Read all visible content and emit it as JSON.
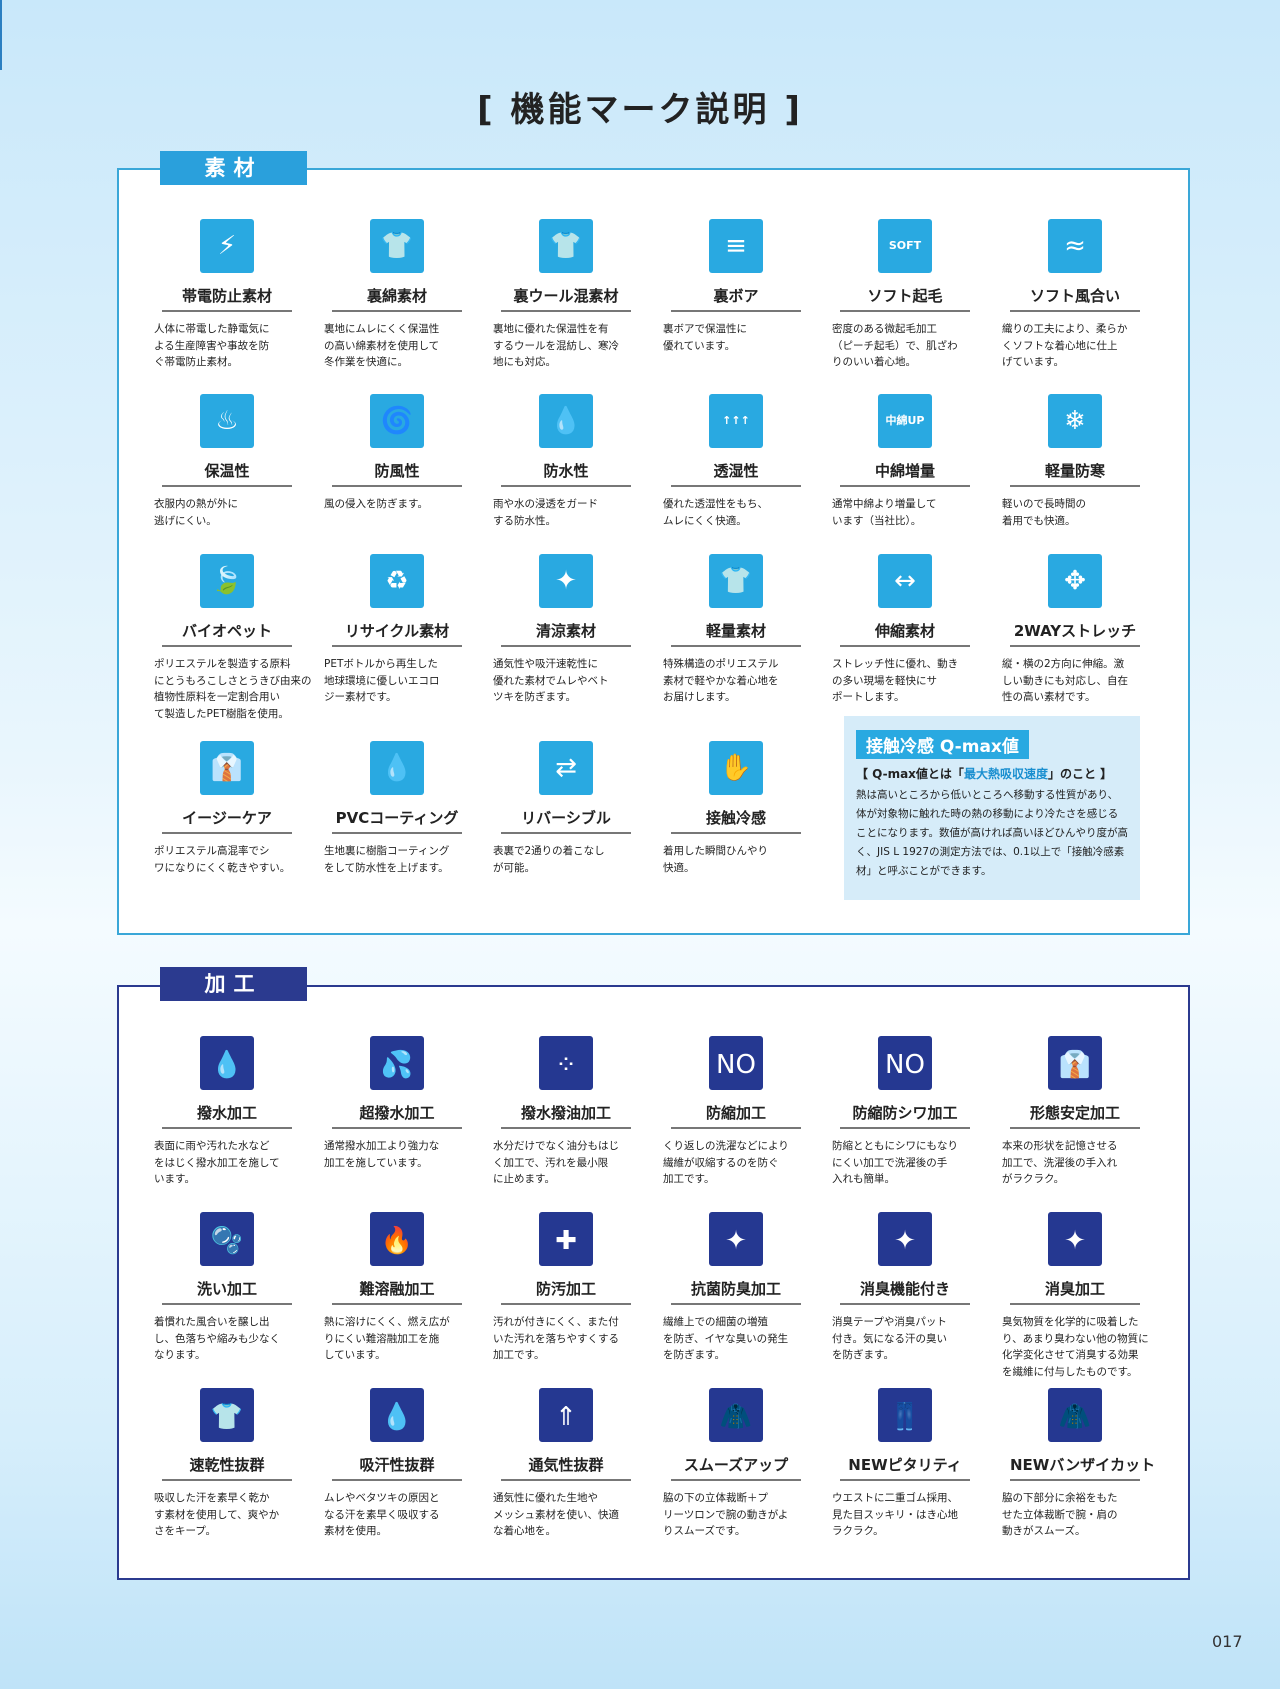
{
  "page_title": "[ 機能マーク説明 ]",
  "page_number": "017",
  "colors": {
    "material": "#29a9e1",
    "processing": "#253891"
  },
  "material": {
    "label": "素材",
    "items": [
      {
        "name": "帯電防止素材",
        "icon": "lightning-icon",
        "glyph": "⚡",
        "desc": "人体に帯電した静電気に\nよる生産障害や事故を防\nぐ帯電防止素材。"
      },
      {
        "name": "裏綿素材",
        "icon": "jacket-cotton-lining-icon",
        "glyph": "👕",
        "desc": "裏地にムレにくく保温性\nの高い綿素材を使用して\n冬作業を快適に。"
      },
      {
        "name": "裏ウール混素材",
        "icon": "jacket-wool-lining-icon",
        "glyph": "👕",
        "desc": "裏地に優れた保温性を有\nするウールを混紡し、寒冷\n地にも対応。"
      },
      {
        "name": "裏ボア",
        "icon": "boa-lining-icon",
        "glyph": "≡",
        "desc": "裏ボアで保温性に\n優れています。"
      },
      {
        "name": "ソフト起毛",
        "icon": "soft-nap-icon",
        "glyph": "SOFT",
        "desc": "密度のある微起毛加工\n（ピーチ起毛）で、肌ざわ\nりのいい着心地。"
      },
      {
        "name": "ソフト風合い",
        "icon": "soft-texture-wave-icon",
        "glyph": "≈",
        "desc": "織りの工夫により、柔らか\nくソフトな着心地に仕上\nげています。"
      },
      {
        "name": "保温性",
        "icon": "heat-retention-icon",
        "glyph": "♨",
        "desc": "衣服内の熱が外に\n逃げにくい。"
      },
      {
        "name": "防風性",
        "icon": "windproof-icon",
        "glyph": "🌀",
        "desc": "風の侵入を防ぎます。"
      },
      {
        "name": "防水性",
        "icon": "waterproof-icon",
        "glyph": "💧",
        "desc": "雨や水の浸透をガード\nする防水性。"
      },
      {
        "name": "透湿性",
        "icon": "breathable-arrows-icon",
        "glyph": "↑↑↑",
        "desc": "優れた透湿性をもち、\nムレにくく快適。"
      },
      {
        "name": "中綿増量",
        "icon": "padding-up-cloud-icon",
        "glyph": "中綿UP",
        "desc": "通常中綿より増量して\nいます（当社比）。"
      },
      {
        "name": "軽量防寒",
        "icon": "lightweight-cold-protection-icon",
        "glyph": "❄",
        "desc": "軽いので長時間の\n着用でも快適。"
      },
      {
        "name": "バイオペット",
        "icon": "bio-pet-leaf-icon",
        "glyph": "🍃",
        "desc": "ポリエステルを製造する原料\nにとうもろこしさとうきび由来の\n植物性原料を一定割合用い\nて製造したPET樹脂を使用。"
      },
      {
        "name": "リサイクル素材",
        "icon": "recycle-icon",
        "glyph": "♻",
        "desc": "PETボトルから再生した\n地球環境に優しいエコロ\nジー素材です。"
      },
      {
        "name": "清涼素材",
        "icon": "cool-shirt-sparkle-icon",
        "glyph": "✦",
        "desc": "通気性や吸汗速乾性に\n優れた素材でムレやベト\nツキを防ぎます。"
      },
      {
        "name": "軽量素材",
        "icon": "lightweight-shirt-icon",
        "glyph": "👕",
        "desc": "特殊構造のポリエステル\n素材で軽やかな着心地を\nお届けします。"
      },
      {
        "name": "伸縮素材",
        "icon": "stretch-horizontal-arrow-icon",
        "glyph": "↔",
        "desc": "ストレッチ性に優れ、動き\nの多い現場を軽快にサ\nポートします。"
      },
      {
        "name": "2WAYストレッチ",
        "icon": "two-way-stretch-arrow-icon",
        "glyph": "✥",
        "desc": "縦・横の2方向に伸縮。激\nしい動きにも対応し、自在\n性の高い素材です。"
      },
      {
        "name": "イージーケア",
        "icon": "easy-care-hanger-icon",
        "glyph": "👔",
        "desc": "ポリエステル高混率でシ\nワになりにくく乾きやすい。"
      },
      {
        "name": "PVCコーティング",
        "icon": "pvc-coating-icon",
        "glyph": "💧",
        "desc": "生地裏に樹脂コーティング\nをして防水性を上げます。"
      },
      {
        "name": "リバーシブル",
        "icon": "reversible-shirt-icon",
        "glyph": "⇄",
        "desc": "表裏で2通りの着こなし\nが可能。"
      },
      {
        "name": "接触冷感",
        "icon": "cool-touch-hand-icon",
        "glyph": "✋",
        "desc": "着用した瞬間ひんやり\n快適。"
      }
    ],
    "qmax": {
      "title": "接触冷感 Q-max値",
      "sub_pre": "【 Q-max値とは「",
      "sub_highlight": "最大熱吸収速度",
      "sub_post": "」のこと 】",
      "body": "熱は高いところから低いところへ移動する性質があり、体が対象物に触れた時の熱の移動により冷たさを感じることになります。数値が高ければ高いほどひんやり度が高く、JIS L 1927の測定方法では、0.1以上で「接触冷感素材」と呼ぶことができます。"
    }
  },
  "processing": {
    "label": "加工",
    "items": [
      {
        "name": "撥水加工",
        "icon": "water-repellent-drop-icon",
        "glyph": "💧",
        "desc": "表面に雨や汚れた水など\nをはじく撥水加工を施して\nいます。"
      },
      {
        "name": "超撥水加工",
        "icon": "super-water-repellent-icon",
        "glyph": "💦",
        "desc": "通常撥水加工より強力な\n加工を施しています。"
      },
      {
        "name": "撥水撥油加工",
        "icon": "water-oil-repellent-icon",
        "glyph": "⁘",
        "desc": "水分だけでなく油分もはじ\nく加工で、汚れを最小限\nに止めます。"
      },
      {
        "name": "防縮加工",
        "icon": "no-shrink-shirt-icon",
        "glyph": "NO",
        "desc": "くり返しの洗濯などにより\n繊維が収縮するのを防ぐ\n加工です。"
      },
      {
        "name": "防縮防シワ加工",
        "icon": "no-shrink-wrinkle-shirt-icon",
        "glyph": "NO",
        "desc": "防縮とともにシワにもなり\nにくい加工で洗濯後の手\n入れも簡単。"
      },
      {
        "name": "形態安定加工",
        "icon": "shape-stable-shirt-icon",
        "glyph": "👔",
        "desc": "本来の形状を記憶させる\n加工で、洗濯後の手入れ\nがラクラク。"
      },
      {
        "name": "洗い加工",
        "icon": "washed-shirt-bubbles-icon",
        "glyph": "🫧",
        "desc": "着慣れた風合いを醸し出\nし、色落ちや縮みも少なく\nなります。"
      },
      {
        "name": "難溶融加工",
        "icon": "flame-resistant-icon",
        "glyph": "🔥",
        "desc": "熱に溶けにくく、燃え広が\nりにくい難溶融加工を施\nしています。"
      },
      {
        "name": "防汚加工",
        "icon": "stain-resistant-icon",
        "glyph": "✚",
        "desc": "汚れが付きにくく、また付\nいた汚れを落ちやすくする\n加工です。"
      },
      {
        "name": "抗菌防臭加工",
        "icon": "antibacterial-sparkle-icon",
        "glyph": "✦",
        "desc": "繊維上での細菌の増殖\nを防ぎ、イヤな臭いの発生\nを防ぎます。"
      },
      {
        "name": "消臭機能付き",
        "icon": "deodorant-function-icon",
        "glyph": "✦",
        "desc": "消臭テープや消臭パット\n付き。気になる汗の臭い\nを防ぎます。"
      },
      {
        "name": "消臭加工",
        "icon": "deodorant-processing-icon",
        "glyph": "✦",
        "desc": "臭気物質を化学的に吸着した\nり、あまり臭わない他の物質に\n化学変化させて消臭する効果\nを繊維に付与したものです。"
      },
      {
        "name": "速乾性抜群",
        "icon": "quick-dry-shirt-icon",
        "glyph": "👕",
        "desc": "吸収した汗を素早く乾か\nす素材を使用して、爽やか\nさをキープ。"
      },
      {
        "name": "吸汗性抜群",
        "icon": "sweat-absorb-drops-icon",
        "glyph": "💧",
        "desc": "ムレやベタツキの原因と\nなる汗を素早く吸収する\n素材を使用。"
      },
      {
        "name": "通気性抜群",
        "icon": "ventilation-arrows-icon",
        "glyph": "⇑",
        "desc": "通気性に優れた生地や\nメッシュ素材を使い、快適\nな着心地を。"
      },
      {
        "name": "スムーズアップ",
        "icon": "smooth-up-jacket-icon",
        "glyph": "🧥",
        "desc": "脇の下の立体裁断＋プ\nリーツロンで腕の動きがよ\nりスムーズです。"
      },
      {
        "name": "NEWピタリティ",
        "icon": "waist-pants-icon",
        "glyph": "👖",
        "desc": "ウエストに二重ゴム採用、\n見た目スッキリ・はき心地\nラクラク。"
      },
      {
        "name": "NEWバンザイカット",
        "icon": "banzai-cut-jacket-icon",
        "glyph": "🧥",
        "desc": "脇の下部分に余裕をもた\nせた立体裁断で腕・肩の\n動きがスムーズ。"
      }
    ]
  }
}
